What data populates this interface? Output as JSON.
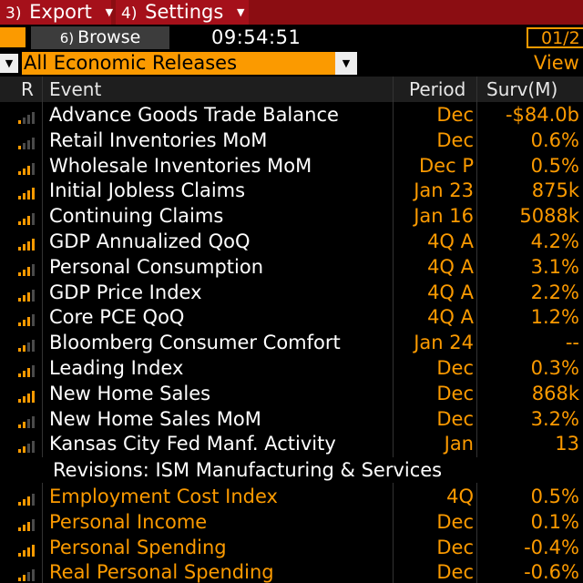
{
  "menubar": {
    "export": {
      "num": "3)",
      "label": "Export"
    },
    "settings": {
      "num": "4)",
      "label": "Settings"
    }
  },
  "toolbar": {
    "browse": {
      "num": "6)",
      "label": "Browse"
    },
    "clock": "09:54:51",
    "date": "01/2"
  },
  "filter": {
    "selected": "All Economic Releases",
    "view_label": "View"
  },
  "columns": {
    "r": "R",
    "event": "Event",
    "period": "Period",
    "surv": "Surv(M)"
  },
  "colors": {
    "accent": "#fb9a00",
    "menu_red": "#a5101a",
    "bar_dim": "#4a4a4a"
  },
  "rows": [
    {
      "event": "Advance Goods Trade Balance",
      "period": "Dec",
      "surv": "-$84.0b",
      "relevance": 1
    },
    {
      "event": "Retail Inventories MoM",
      "period": "Dec",
      "surv": "0.6%",
      "relevance": 1
    },
    {
      "event": "Wholesale Inventories MoM",
      "period": "Dec P",
      "surv": "0.5%",
      "relevance": 3
    },
    {
      "event": "Initial Jobless Claims",
      "period": "Jan 23",
      "surv": "875k",
      "relevance": 4
    },
    {
      "event": "Continuing Claims",
      "period": "Jan 16",
      "surv": "5088k",
      "relevance": 3
    },
    {
      "event": "GDP Annualized QoQ",
      "period": "4Q A",
      "surv": "4.2%",
      "relevance": 4
    },
    {
      "event": "Personal Consumption",
      "period": "4Q A",
      "surv": "3.1%",
      "relevance": 3
    },
    {
      "event": "GDP Price Index",
      "period": "4Q A",
      "surv": "2.2%",
      "relevance": 3
    },
    {
      "event": "Core PCE QoQ",
      "period": "4Q A",
      "surv": "1.2%",
      "relevance": 3
    },
    {
      "event": "Bloomberg Consumer Comfort",
      "period": "Jan 24",
      "surv": "--",
      "relevance": 2
    },
    {
      "event": "Leading Index",
      "period": "Dec",
      "surv": "0.3%",
      "relevance": 3
    },
    {
      "event": "New Home Sales",
      "period": "Dec",
      "surv": "868k",
      "relevance": 4
    },
    {
      "event": "New Home Sales MoM",
      "period": "Dec",
      "surv": "3.2%",
      "relevance": 2
    },
    {
      "event": "Kansas City Fed Manf. Activity",
      "period": "Jan",
      "surv": "13",
      "relevance": 2
    }
  ],
  "revisions_label": "Revisions: ISM Manufacturing & Services",
  "released_rows": [
    {
      "event": "Employment Cost Index",
      "period": "4Q",
      "surv": "0.5%",
      "relevance": 3
    },
    {
      "event": "Personal Income",
      "period": "Dec",
      "surv": "0.1%",
      "relevance": 3
    },
    {
      "event": "Personal Spending",
      "period": "Dec",
      "surv": "-0.4%",
      "relevance": 4
    },
    {
      "event": "Real Personal Spending",
      "period": "Dec",
      "surv": "-0.6%",
      "relevance": 2
    }
  ]
}
